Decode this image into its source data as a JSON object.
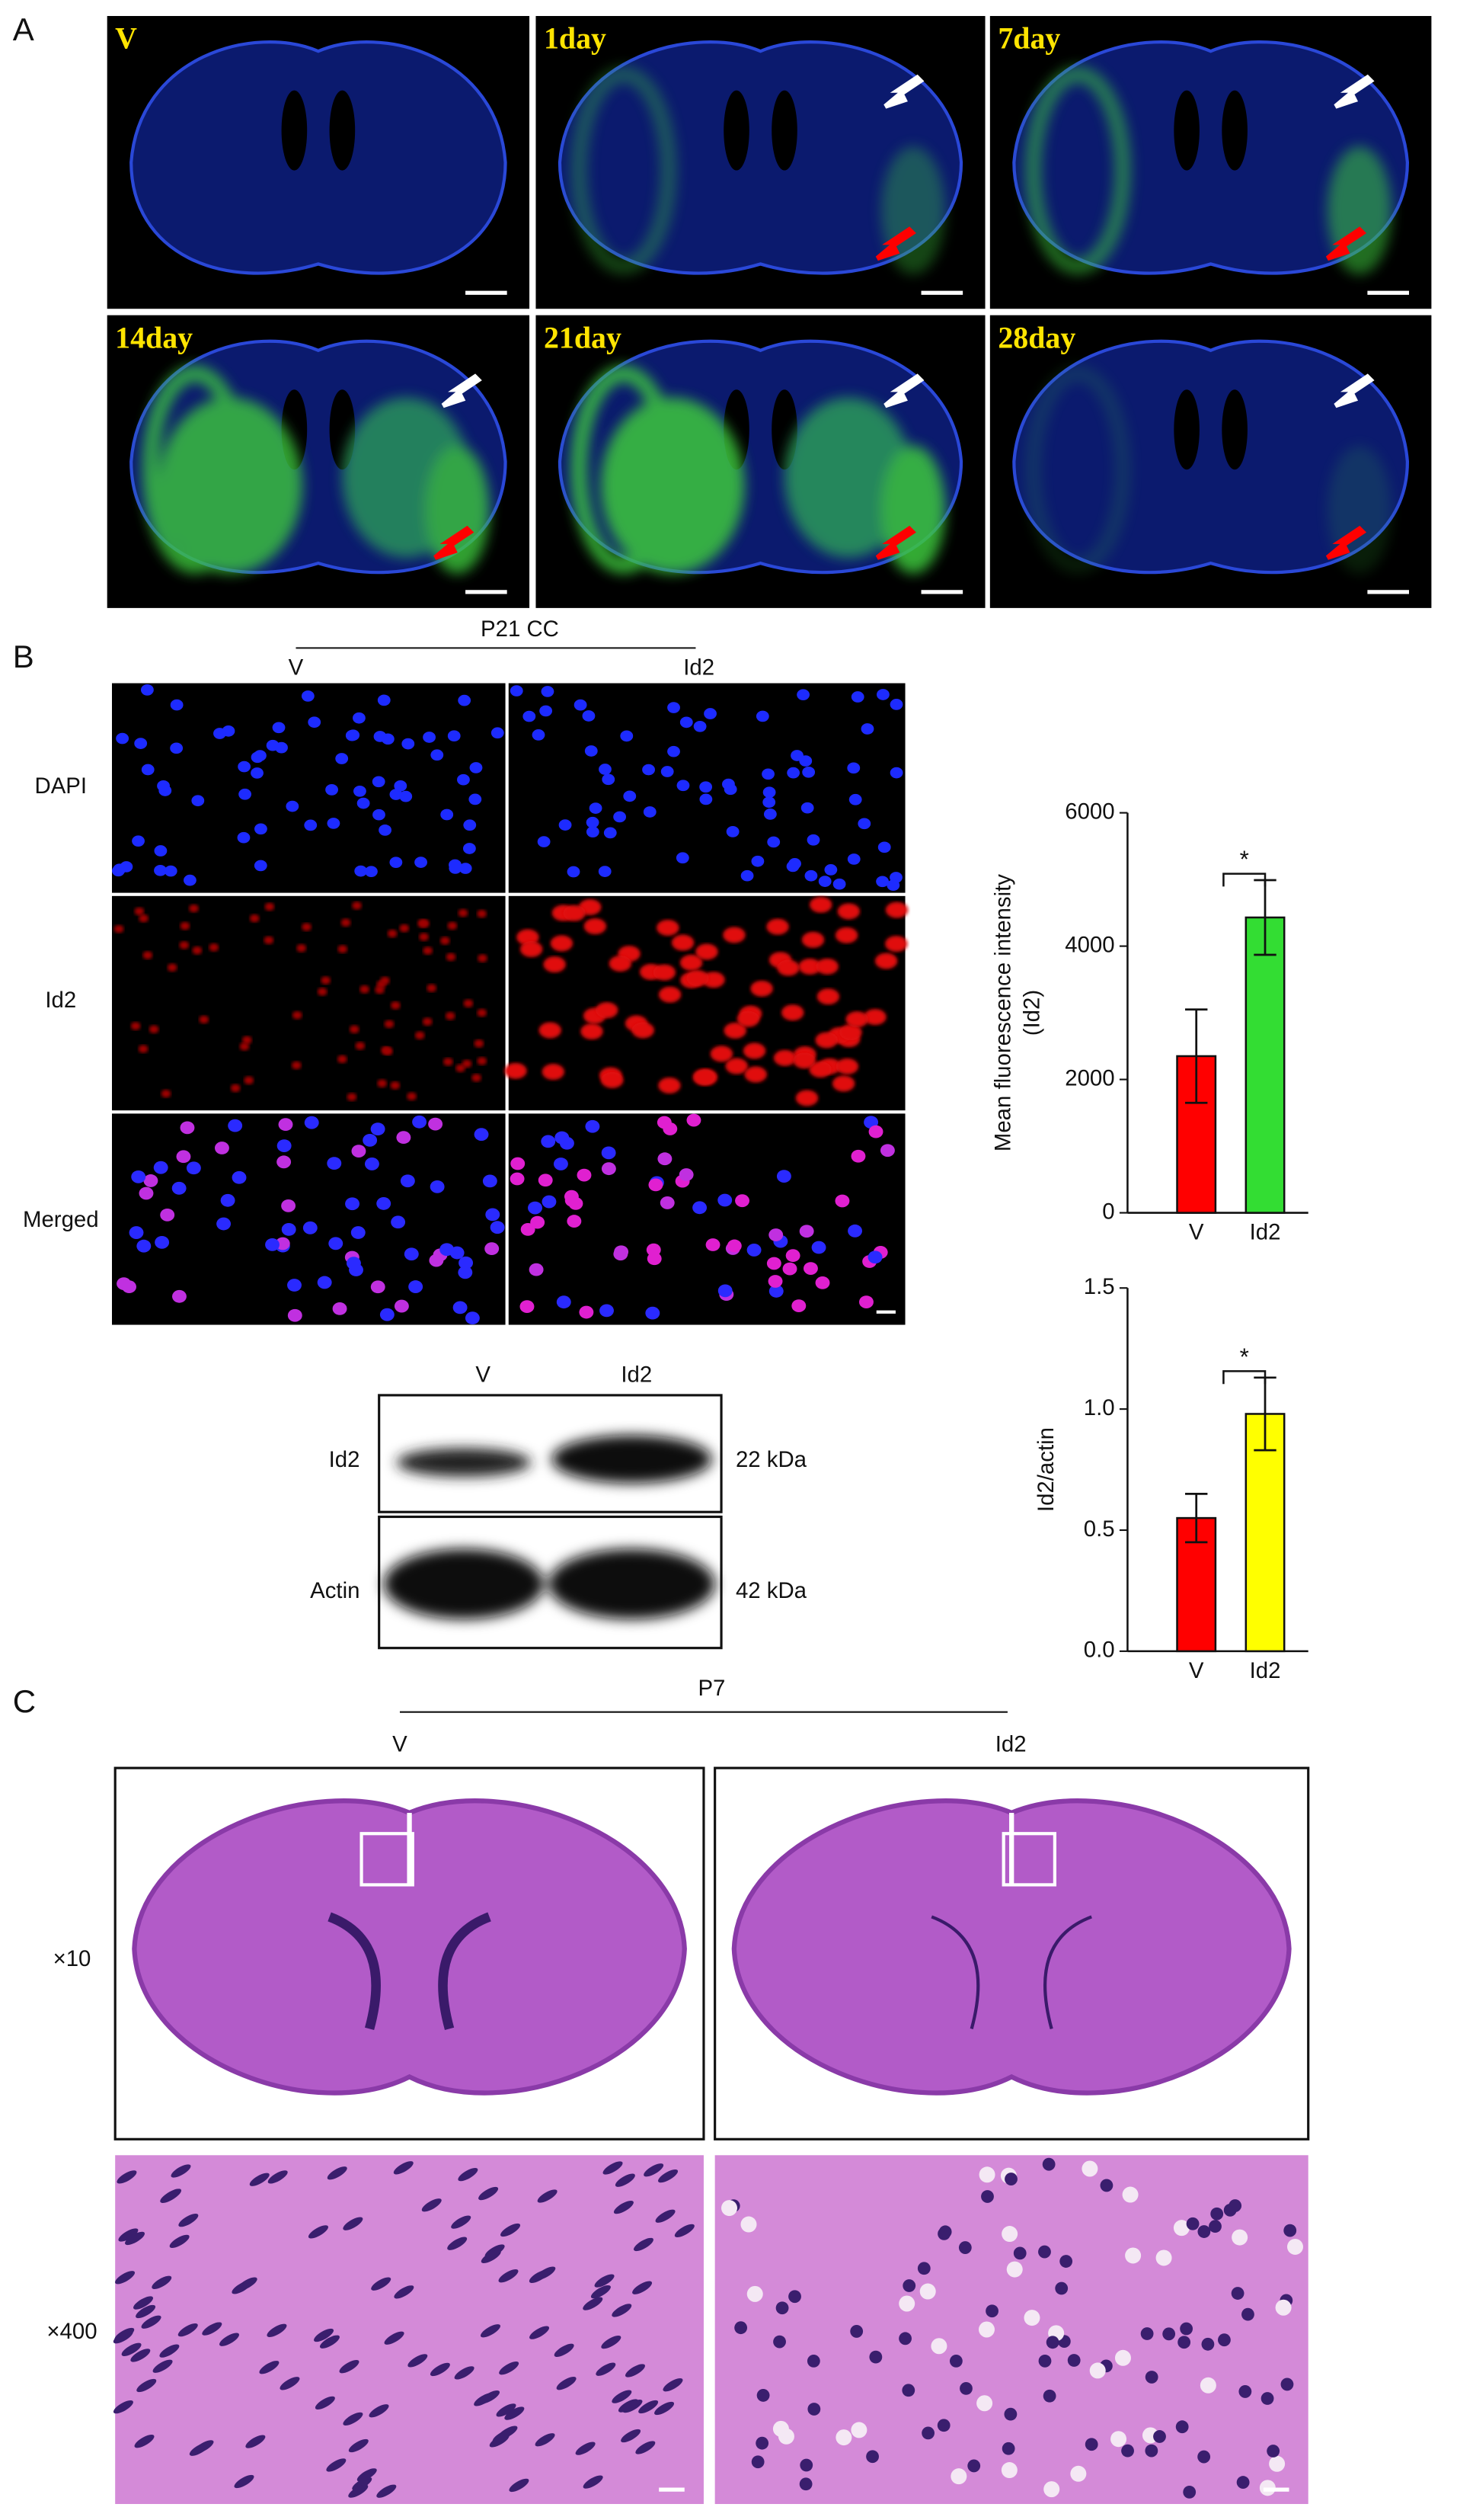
{
  "panel_a": {
    "label": "A",
    "images": [
      "V",
      "1day",
      "7day",
      "14day",
      "21day",
      "28day"
    ]
  },
  "panel_b": {
    "label": "B",
    "group": "P21 CC",
    "columns": [
      "V",
      "Id2"
    ],
    "rows": [
      "DAPI",
      "Id2",
      "Merged"
    ],
    "blot": {
      "lanes": [
        "V",
        "Id2"
      ],
      "bands": [
        {
          "name": "Id2",
          "size": "22 kDa"
        },
        {
          "name": "Actin",
          "size": "42 kDa"
        }
      ]
    }
  },
  "chart_data": [
    {
      "type": "bar",
      "ylabel": "Mean fluorescence intensity",
      "ylabel_line2": "(Id2)",
      "categories": [
        "V",
        "Id2"
      ],
      "values": [
        2350,
        4430
      ],
      "errors": [
        700,
        560
      ],
      "colors": [
        "#ff0000",
        "#33dd33"
      ],
      "ylim": [
        0,
        6000
      ],
      "yticks": [
        0,
        2000,
        4000,
        6000
      ],
      "significance": "*"
    },
    {
      "type": "bar",
      "ylabel": "Id2/actin",
      "categories": [
        "V",
        "Id2"
      ],
      "values": [
        0.55,
        0.98
      ],
      "errors": [
        0.1,
        0.15
      ],
      "colors": [
        "#ff0000",
        "#ffff00"
      ],
      "ylim": [
        0,
        1.5
      ],
      "yticks": [
        {
          "value": 0,
          "label": "0.0"
        },
        0.5,
        {
          "value": 1,
          "label": "1.0"
        },
        1.5
      ],
      "significance": "*"
    }
  ],
  "panel_c": {
    "label": "C",
    "group": "P7",
    "columns": [
      "V",
      "Id2"
    ],
    "rows": [
      "×10",
      "×400"
    ]
  }
}
